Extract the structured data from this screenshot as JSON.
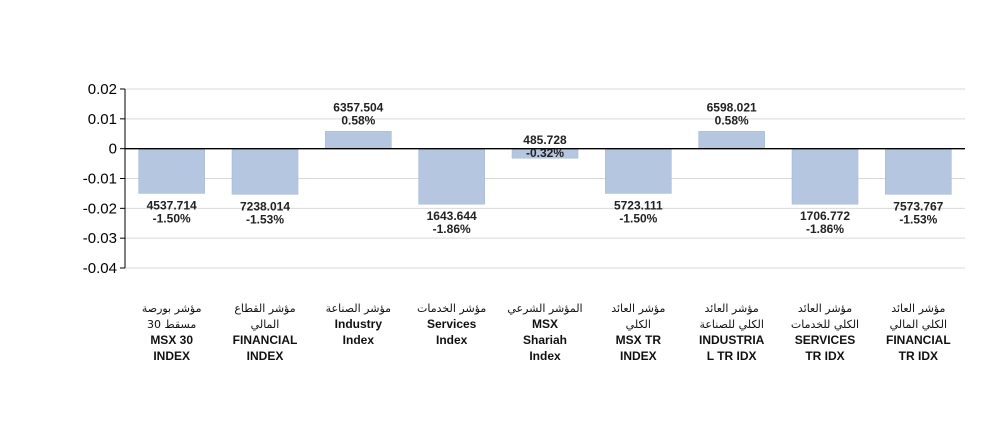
{
  "chart_data": {
    "type": "bar",
    "ylim": [
      -0.04,
      0.02
    ],
    "yticks": [
      "0.02",
      "0.01",
      "0",
      "-0.01",
      "-0.02",
      "-0.03",
      "-0.04"
    ],
    "grid": true,
    "colors": {
      "bar": "#b4c6e0",
      "bar_stroke": "#9fb4d2",
      "grid": "#d9d9d9",
      "zero_line": "#000000"
    },
    "categories": [
      [
        "مؤشر بورصة",
        "مسقط 30",
        "MSX 30",
        "INDEX"
      ],
      [
        "مؤشر القطاع",
        "المالي",
        "FINANCIAL",
        "INDEX"
      ],
      [
        "مؤشر الصناعة",
        "Industry",
        "Index"
      ],
      [
        "مؤشر الخدمات",
        "Services",
        "Index"
      ],
      [
        "المؤشر الشرعي",
        "MSX",
        "Shariah",
        "Index"
      ],
      [
        "مؤشر العائد",
        "الكلي",
        "MSX TR",
        "INDEX"
      ],
      [
        "مؤشر العائد",
        "الكلي للصناعة",
        "INDUSTRIA",
        "L TR IDX"
      ],
      [
        "مؤشر العائد",
        "الكلي للخدمات",
        "SERVICES",
        "TR IDX"
      ],
      [
        "مؤشر العائد",
        "الكلي المالي",
        "FINANCIAL",
        "TR IDX"
      ]
    ],
    "values": [
      -0.015,
      -0.0153,
      0.0058,
      -0.0186,
      -0.0032,
      -0.015,
      0.0058,
      -0.0186,
      -0.0153
    ],
    "data_labels": [
      [
        "4537.714",
        "-1.50%"
      ],
      [
        "7238.014",
        "-1.53%"
      ],
      [
        "6357.504",
        "0.58%"
      ],
      [
        "1643.644",
        "-1.86%"
      ],
      [
        "485.728",
        "-0.32%"
      ],
      [
        "5723.111",
        "-1.50%"
      ],
      [
        "6598.021",
        "0.58%"
      ],
      [
        "1706.772",
        "-1.86%"
      ],
      [
        "7573.767",
        "-1.53%"
      ]
    ]
  }
}
